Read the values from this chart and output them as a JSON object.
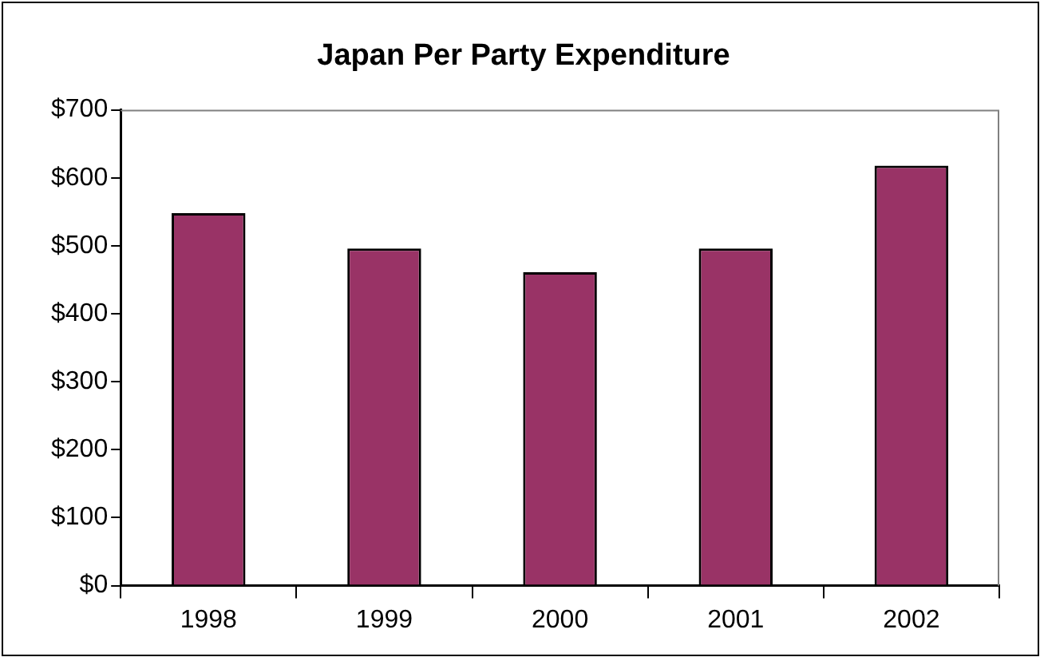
{
  "chart_data": {
    "type": "bar",
    "title": "Japan Per Party Expenditure",
    "categories": [
      "1998",
      "1999",
      "2000",
      "2001",
      "2002"
    ],
    "values": [
      548,
      496,
      461,
      496,
      618
    ],
    "color": "#993366",
    "ylim": [
      0,
      700
    ],
    "yticks": [
      {
        "value": 0,
        "label": "$0"
      },
      {
        "value": 100,
        "label": "$100"
      },
      {
        "value": 200,
        "label": "$200"
      },
      {
        "value": 300,
        "label": "$300"
      },
      {
        "value": 400,
        "label": "$400"
      },
      {
        "value": 500,
        "label": "$500"
      },
      {
        "value": 600,
        "label": "$600"
      },
      {
        "value": 700,
        "label": "$700"
      }
    ],
    "grid": false,
    "legend": false
  }
}
